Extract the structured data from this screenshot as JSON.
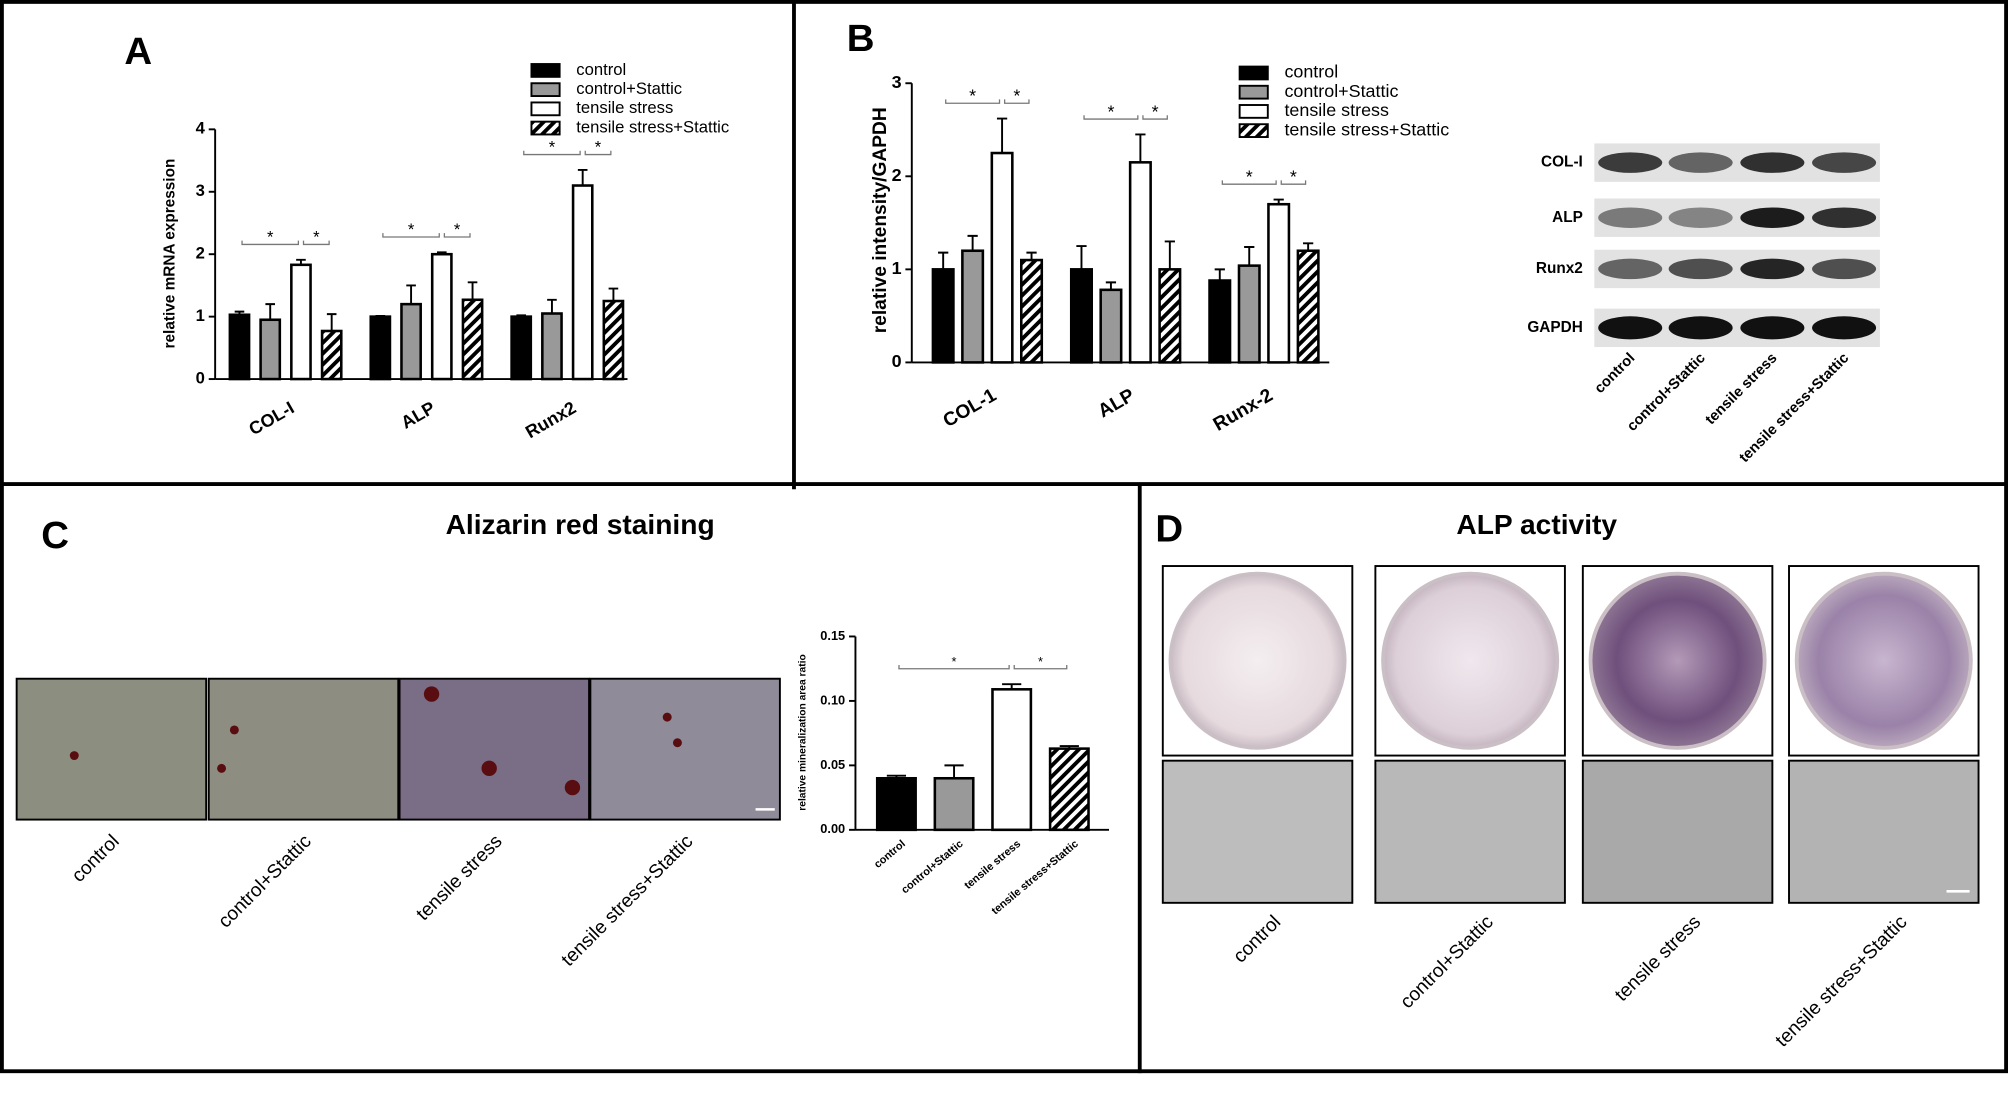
{
  "chart_data": [
    {
      "type": "bar",
      "y_label": "relative mRNA expression",
      "categories": [
        "COL-I",
        "ALP",
        "Runx2"
      ],
      "series": [
        {
          "name": "control",
          "color": "#000000",
          "values": [
            1.03,
            1.0,
            1.0
          ],
          "errors": [
            0.05,
            0.01,
            0.02
          ]
        },
        {
          "name": "control+Stattic",
          "color": "#999999",
          "values": [
            0.95,
            1.2,
            1.05
          ],
          "errors": [
            0.25,
            0.3,
            0.22
          ]
        },
        {
          "name": "tensile stress",
          "color": "#ffffff",
          "values": [
            1.83,
            2.0,
            3.1
          ],
          "errors": [
            0.08,
            0.03,
            0.25
          ]
        },
        {
          "name": "tensile stress+Stattic",
          "color": "#ffffff",
          "hatch": true,
          "values": [
            0.77,
            1.27,
            1.25
          ],
          "errors": [
            0.27,
            0.28,
            0.2
          ]
        }
      ],
      "ylim": [
        0,
        4
      ],
      "yticks": [
        0,
        1,
        2,
        3,
        4
      ],
      "legend": "top-right",
      "significance": [
        {
          "category": "COL-I",
          "between": [
            "control",
            "tensile stress"
          ],
          "label": "*"
        },
        {
          "category": "COL-I",
          "between": [
            "tensile stress",
            "tensile stress+Stattic"
          ],
          "label": "*"
        },
        {
          "category": "ALP",
          "between": [
            "control",
            "tensile stress"
          ],
          "label": "*"
        },
        {
          "category": "ALP",
          "between": [
            "tensile stress",
            "tensile stress+Stattic"
          ],
          "label": "*"
        },
        {
          "category": "Runx2",
          "between": [
            "control",
            "tensile stress"
          ],
          "label": "*"
        },
        {
          "category": "Runx2",
          "between": [
            "tensile stress",
            "tensile stress+Stattic"
          ],
          "label": "*"
        }
      ]
    },
    {
      "type": "bar",
      "y_label": "relative intensity/GAPDH",
      "categories": [
        "COL-1",
        "ALP",
        "Runx-2"
      ],
      "series": [
        {
          "name": "control",
          "color": "#000000",
          "values": [
            1.0,
            1.0,
            0.88
          ],
          "errors": [
            0.18,
            0.25,
            0.12
          ]
        },
        {
          "name": "control+Stattic",
          "color": "#999999",
          "values": [
            1.2,
            0.78,
            1.04
          ],
          "errors": [
            0.16,
            0.08,
            0.2
          ]
        },
        {
          "name": "tensile stress",
          "color": "#ffffff",
          "values": [
            2.25,
            2.15,
            1.7
          ],
          "errors": [
            0.37,
            0.3,
            0.05
          ]
        },
        {
          "name": "tensile stress+Stattic",
          "color": "#ffffff",
          "hatch": true,
          "values": [
            1.1,
            1.0,
            1.2
          ],
          "errors": [
            0.08,
            0.3,
            0.08
          ]
        }
      ],
      "ylim": [
        0,
        3
      ],
      "yticks": [
        0,
        1,
        2,
        3
      ],
      "legend": "top-right",
      "significance": [
        {
          "category": "COL-1",
          "between": [
            "control",
            "tensile stress"
          ],
          "label": "*"
        },
        {
          "category": "COL-1",
          "between": [
            "tensile stress",
            "tensile stress+Stattic"
          ],
          "label": "*"
        },
        {
          "category": "ALP",
          "between": [
            "control",
            "tensile stress"
          ],
          "label": "*"
        },
        {
          "category": "ALP",
          "between": [
            "tensile stress",
            "tensile stress+Stattic"
          ],
          "label": "*"
        },
        {
          "category": "Runx-2",
          "between": [
            "control",
            "tensile stress"
          ],
          "label": "*"
        },
        {
          "category": "Runx-2",
          "between": [
            "tensile stress",
            "tensile stress+Stattic"
          ],
          "label": "*"
        }
      ]
    },
    {
      "type": "bar",
      "y_label": "relative mineralization area ratio",
      "categories": [
        "control",
        "control+Stattic",
        "tensile stress",
        "tensile stress+Stattic"
      ],
      "values": [
        0.04,
        0.04,
        0.109,
        0.063
      ],
      "errors": [
        0.002,
        0.01,
        0.004,
        0.002
      ],
      "colors": [
        "#000000",
        "#999999",
        "#ffffff",
        "#ffffff"
      ],
      "hatch": [
        false,
        false,
        false,
        true
      ],
      "ylim": [
        0,
        0.15
      ],
      "yticks": [
        {
          "value": 0,
          "label": "0.00"
        },
        {
          "value": 0.05,
          "label": "0.05"
        },
        {
          "value": 0.1,
          "label": "0.10"
        },
        {
          "value": 0.15,
          "label": "0.15"
        }
      ],
      "significance": [
        {
          "between": [
            "control",
            "tensile stress"
          ],
          "label": "*"
        },
        {
          "between": [
            "tensile stress",
            "tensile stress+Stattic"
          ],
          "label": "*"
        }
      ]
    }
  ],
  "panel_letters": [
    "A",
    "B",
    "C",
    "D"
  ],
  "western_blot": {
    "proteins": [
      "COL-I",
      "ALP",
      "Runx2",
      "GAPDH"
    ],
    "lanes": [
      "control",
      "control+Stattic",
      "tensile stress",
      "tensile stress+Stattic"
    ]
  },
  "alizarin": {
    "title": "Alizarin red staining",
    "labels": [
      "control",
      "control+Stattic",
      "tensile stress",
      "tensile stress+Stattic"
    ]
  },
  "alp_activity": {
    "title": "ALP activity",
    "labels": [
      "control",
      "control+Stattic",
      "tensile stress",
      "tensile stress+Stattic"
    ]
  }
}
